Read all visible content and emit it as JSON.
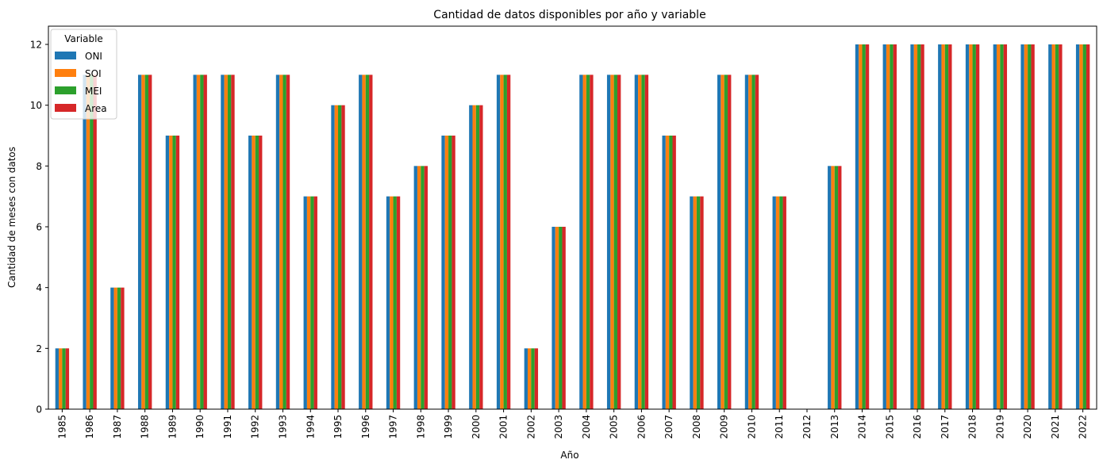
{
  "chart_data": {
    "type": "bar",
    "title": "Cantidad de datos disponibles por año y variable",
    "xlabel": "Año",
    "ylabel": "Cantidad de meses con datos",
    "ylim": [
      0,
      12.6
    ],
    "yticks": [
      0,
      2,
      4,
      6,
      8,
      10,
      12
    ],
    "grid": false,
    "legend": {
      "title": "Variable",
      "placement": "top-left"
    },
    "categories": [
      "1985",
      "1986",
      "1987",
      "1988",
      "1989",
      "1990",
      "1991",
      "1992",
      "1993",
      "1994",
      "1995",
      "1996",
      "1997",
      "1998",
      "1999",
      "2000",
      "2001",
      "2002",
      "2003",
      "2004",
      "2005",
      "2006",
      "2007",
      "2008",
      "2009",
      "2010",
      "2011",
      "2012",
      "2013",
      "2014",
      "2015",
      "2016",
      "2017",
      "2018",
      "2019",
      "2020",
      "2021",
      "2022"
    ],
    "series": [
      {
        "name": "ONI",
        "color": "#1f77b4",
        "values": [
          2,
          11,
          4,
          11,
          9,
          11,
          11,
          9,
          11,
          7,
          10,
          11,
          7,
          8,
          9,
          10,
          11,
          2,
          6,
          11,
          11,
          11,
          9,
          7,
          11,
          11,
          7,
          0,
          8,
          12,
          12,
          12,
          12,
          12,
          12,
          12,
          12,
          12
        ]
      },
      {
        "name": "SOI",
        "color": "#ff7f0e",
        "values": [
          2,
          11,
          4,
          11,
          9,
          11,
          11,
          9,
          11,
          7,
          10,
          11,
          7,
          8,
          9,
          10,
          11,
          2,
          6,
          11,
          11,
          11,
          9,
          7,
          11,
          11,
          7,
          0,
          8,
          12,
          12,
          12,
          12,
          12,
          12,
          12,
          12,
          12
        ]
      },
      {
        "name": "MEI",
        "color": "#2ca02c",
        "values": [
          2,
          11,
          4,
          11,
          9,
          11,
          11,
          9,
          11,
          7,
          10,
          11,
          7,
          8,
          9,
          10,
          11,
          2,
          6,
          11,
          11,
          11,
          9,
          7,
          11,
          11,
          7,
          0,
          8,
          12,
          12,
          12,
          12,
          12,
          12,
          12,
          12,
          12
        ]
      },
      {
        "name": "Area",
        "color": "#d62728",
        "values": [
          2,
          11,
          4,
          11,
          9,
          11,
          11,
          9,
          11,
          7,
          10,
          11,
          7,
          8,
          9,
          10,
          11,
          2,
          6,
          11,
          11,
          11,
          9,
          7,
          11,
          11,
          7,
          0,
          8,
          12,
          12,
          12,
          12,
          12,
          12,
          12,
          12,
          12
        ]
      }
    ]
  }
}
